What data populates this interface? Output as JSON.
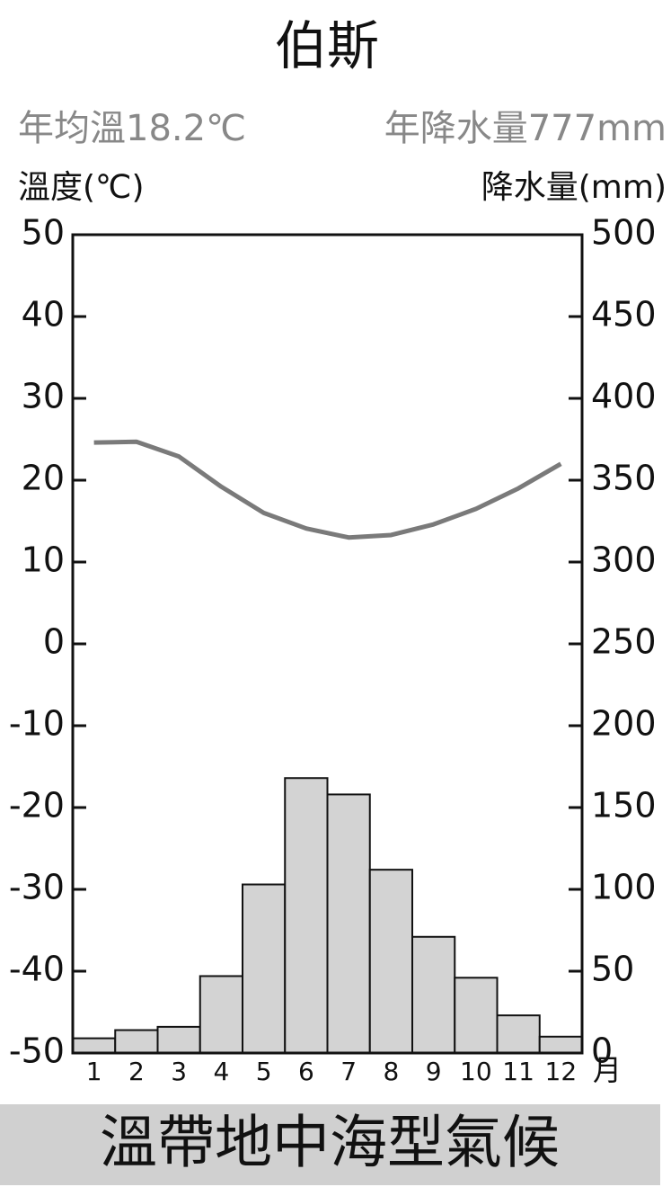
{
  "chart_data": {
    "type": "combo",
    "title": "伯斯",
    "annotations": [
      "年均溫18.2℃",
      "年降水量777mm"
    ],
    "ylabel": "溫度(℃)",
    "y2label": "降水量(mm)",
    "xlabel": "月",
    "caption": "溫帶地中海型氣候",
    "categories": [
      "1",
      "2",
      "3",
      "4",
      "5",
      "6",
      "7",
      "8",
      "9",
      "10",
      "11",
      "12"
    ],
    "series": [
      {
        "type": "bar",
        "axis": "y2",
        "color": "#d3d3d3",
        "values": [
          9,
          14,
          16,
          47,
          103,
          168,
          158,
          112,
          71,
          46,
          23,
          10
        ]
      },
      {
        "type": "line",
        "axis": "y",
        "color": "#7a7a7a",
        "values": [
          24.6,
          24.7,
          22.9,
          19.2,
          16.0,
          14.1,
          13.0,
          13.3,
          14.6,
          16.5,
          19.0,
          22.0
        ]
      }
    ],
    "ylim": [
      -50,
      50
    ],
    "yticks": [
      -50,
      -40,
      -30,
      -20,
      -10,
      0,
      10,
      20,
      30,
      40,
      50
    ],
    "y2lim": [
      0,
      500
    ],
    "y2ticks": [
      0,
      50,
      100,
      150,
      200,
      250,
      300,
      350,
      400,
      450,
      500
    ]
  }
}
